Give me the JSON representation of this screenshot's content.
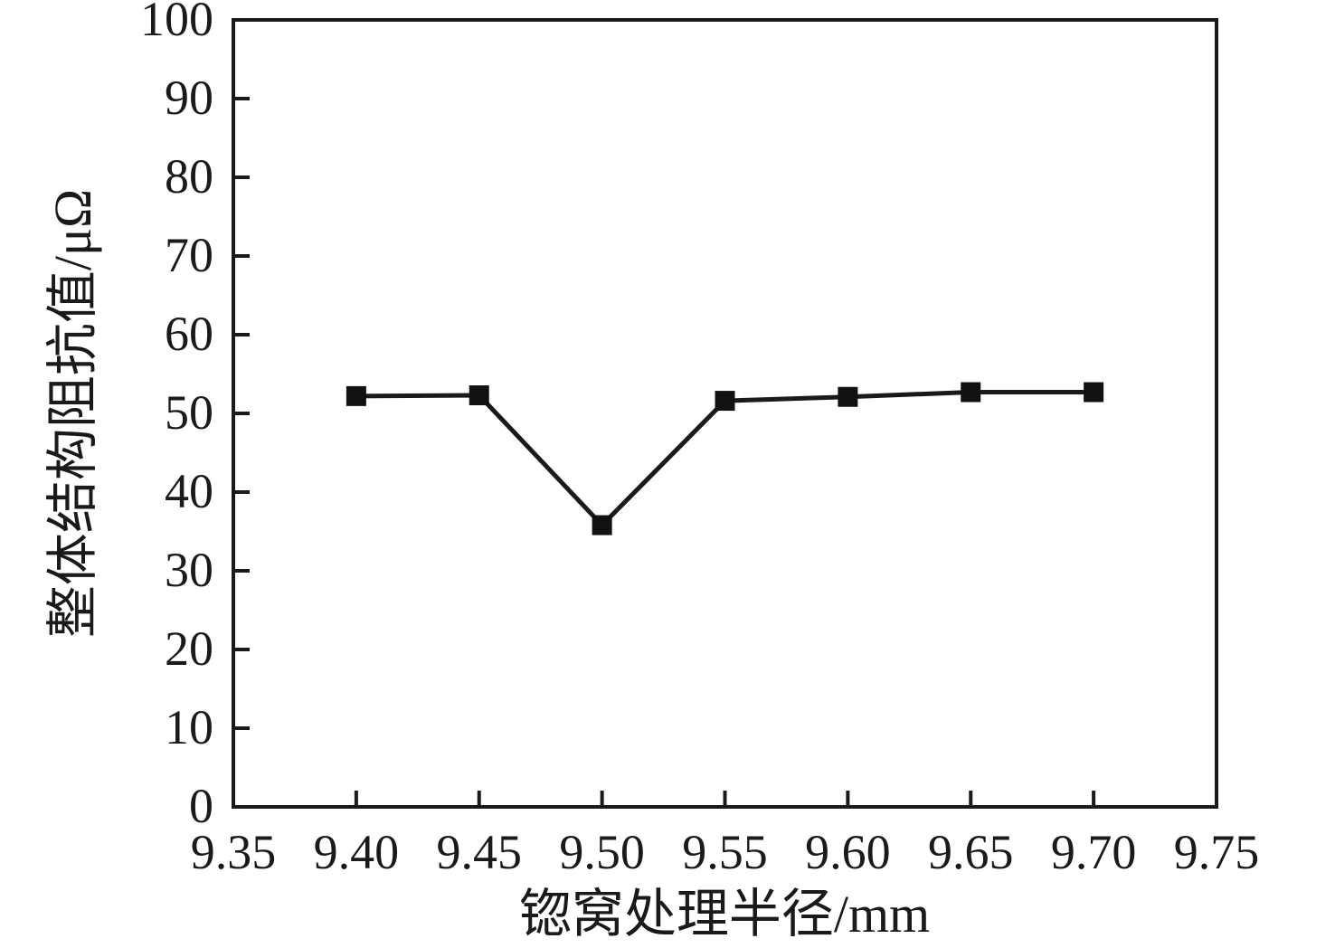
{
  "chart_data": {
    "type": "line",
    "title": "",
    "xlabel": "锪窝处理半径/mm",
    "ylabel": "整体结构阻抗值/μΩ",
    "xlim": [
      9.35,
      9.75
    ],
    "ylim": [
      0,
      100
    ],
    "xticks": [
      9.35,
      9.4,
      9.45,
      9.5,
      9.55,
      9.6,
      9.65,
      9.7,
      9.75
    ],
    "xtick_labels": [
      "9.35",
      "9.40",
      "9.45",
      "9.50",
      "9.55",
      "9.60",
      "9.65",
      "9.70",
      "9.75"
    ],
    "yticks": [
      0,
      10,
      20,
      30,
      40,
      50,
      60,
      70,
      80,
      90,
      100
    ],
    "ytick_labels": [
      "0",
      "10",
      "20",
      "30",
      "40",
      "50",
      "60",
      "70",
      "80",
      "90",
      "100"
    ],
    "grid": false,
    "legend_visible": false,
    "marker": "square",
    "series": [
      {
        "color": "#1a1a1a",
        "x": [
          9.4,
          9.45,
          9.5,
          9.55,
          9.6,
          9.65,
          9.7
        ],
        "y": [
          52.2,
          52.3,
          35.8,
          51.6,
          52.1,
          52.7,
          52.7
        ]
      }
    ],
    "colors": {
      "background": "#ffffff",
      "axis": "#1a1a1a",
      "marker": "#111111"
    }
  }
}
